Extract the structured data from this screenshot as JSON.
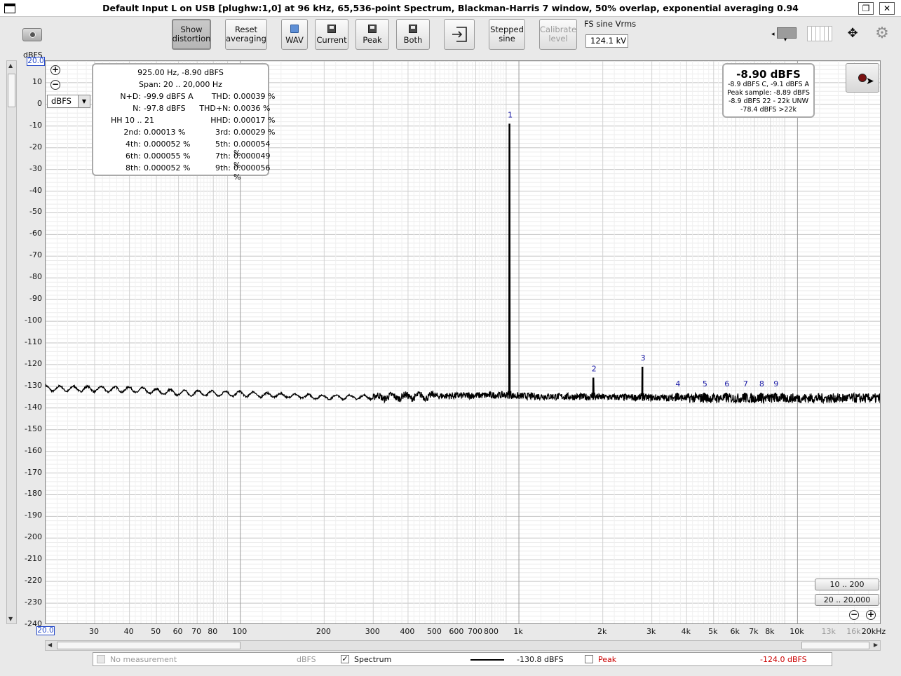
{
  "window": {
    "title": "Default Input L on USB [plughw:1,0] at 96 kHz, 65,536-point Spectrum, Blackman-Harris 7 window, 50% overlap, exponential averaging 0.94"
  },
  "toolbar": {
    "show_distortion": [
      "Show",
      "distortion"
    ],
    "reset_averaging": [
      "Reset",
      "averaging"
    ],
    "wav": "WAV",
    "current": "Current",
    "peak": "Peak",
    "both": "Both",
    "stepped_sine": [
      "Stepped",
      "sine"
    ],
    "calibrate_level": [
      "Calibrate",
      "level"
    ],
    "fs_label": "FS sine Vrms",
    "fs_value": "124.1 kV"
  },
  "axes": {
    "y_unit": "dBFS",
    "y_max_box": "20.0",
    "x_min_box": "20.0",
    "y_ticks": [
      "10",
      "0",
      "-10",
      "-20",
      "-30",
      "-40",
      "-50",
      "-60",
      "-70",
      "-80",
      "-90",
      "-100",
      "-110",
      "-120",
      "-130",
      "-140",
      "-150",
      "-160",
      "-170",
      "-180",
      "-190",
      "-200",
      "-210",
      "-220",
      "-230",
      "-240"
    ],
    "x_ticks": [
      "30",
      "40",
      "50",
      "60",
      "70",
      "80",
      "100",
      "200",
      "300",
      "400",
      "500",
      "600",
      "700",
      "800",
      "1k",
      "2k",
      "3k",
      "4k",
      "5k",
      "6k",
      "7k",
      "8k",
      "10k",
      "13k",
      "16k",
      "20kHz"
    ],
    "unit_select": "dBFS"
  },
  "chart_data": {
    "type": "line",
    "title": "",
    "xlabel": "",
    "ylabel": "dBFS",
    "x_scale": "log",
    "xlim": [
      20,
      20000
    ],
    "ylim": [
      -240,
      20
    ],
    "grid": true,
    "series": [
      {
        "name": "Spectrum",
        "noise_floor_points": [
          [
            20,
            -131
          ],
          [
            40,
            -131.5
          ],
          [
            60,
            -133
          ],
          [
            100,
            -133.5
          ],
          [
            200,
            -135
          ],
          [
            300,
            -135
          ],
          [
            500,
            -134.5
          ],
          [
            880,
            -134
          ],
          [
            1000,
            -134.5
          ],
          [
            2000,
            -135
          ],
          [
            5000,
            -135.5
          ],
          [
            10000,
            -135.5
          ],
          [
            20000,
            -135.5
          ]
        ],
        "peaks": [
          {
            "label": "1",
            "freq": 925,
            "level": -8.9
          },
          {
            "label": "2",
            "freq": 1850,
            "level": -126
          },
          {
            "label": "3",
            "freq": 2775,
            "level": -121
          },
          {
            "label": "4",
            "freq": 3700,
            "level": -133
          },
          {
            "label": "5",
            "freq": 4625,
            "level": -133
          },
          {
            "label": "6",
            "freq": 5550,
            "level": -133
          },
          {
            "label": "7",
            "freq": 6475,
            "level": -133
          },
          {
            "label": "8",
            "freq": 7400,
            "level": -133
          },
          {
            "label": "9",
            "freq": 8325,
            "level": -133
          }
        ]
      }
    ]
  },
  "readout": {
    "freq_level": "925.00 Hz, -8.90 dBFS",
    "span": "Span: 20 .. 20,000 Hz",
    "rows": [
      {
        "l1": "N+D:",
        "v1": "-99.9 dBFS A",
        "l2": "THD:",
        "v2": "0.00039 %"
      },
      {
        "l1": "N:",
        "v1": "-97.8 dBFS",
        "l2": "THD+N:",
        "v2": "0.0036 %"
      },
      {
        "l1": "HH 10 .. 21",
        "v1": "",
        "l2": "HHD:",
        "v2": "0.00017 %"
      },
      {
        "l1": "2nd:",
        "v1": "0.00013 %",
        "l2": "3rd:",
        "v2": "0.00029 %"
      },
      {
        "l1": "4th:",
        "v1": "0.000052 %",
        "l2": "5th:",
        "v2": "0.000054 %"
      },
      {
        "l1": "6th:",
        "v1": "0.000055 %",
        "l2": "7th:",
        "v2": "0.000049 %"
      },
      {
        "l1": "8th:",
        "v1": "0.000052 %",
        "l2": "9th:",
        "v2": "0.000056 %"
      }
    ]
  },
  "level": {
    "main": "-8.90 dBFS",
    "lines": [
      "-8.9 dBFS C, -9.1 dBFS A",
      "Peak sample: -8.89 dBFS",
      "-8.9 dBFS 22 - 22k UNW",
      "-78.4 dBFS >22k"
    ]
  },
  "ranges": {
    "r1": "10 .. 200",
    "r2": "20 .. 20,000"
  },
  "legend": {
    "no_measurement": "No measurement",
    "no_measurement_unit": "dBFS",
    "spectrum": "Spectrum",
    "spectrum_value": "-130.8 dBFS",
    "peak": "Peak",
    "peak_value": "-124.0 dBFS"
  },
  "colors": {
    "trace": "#000000",
    "peak_label": "#1a1aa6",
    "peak_legend": "#cc0000",
    "axis_box": "#2448c8"
  }
}
